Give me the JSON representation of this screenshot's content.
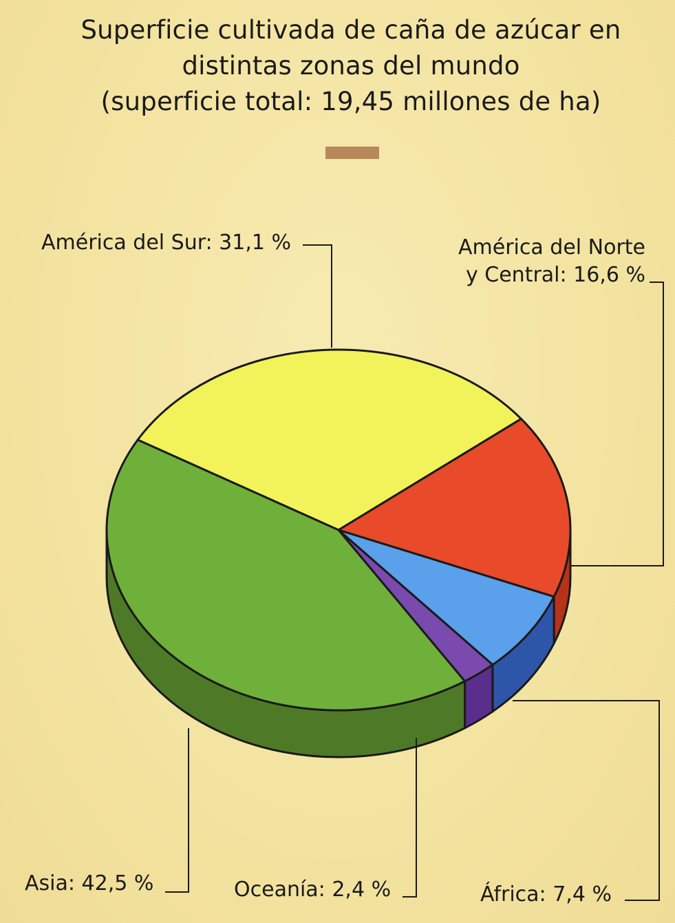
{
  "title_lines": [
    "Superficie cultivada de caña de azúcar en",
    "distintas zonas del mundo",
    "(superficie total: 19,45 millones de ha)"
  ],
  "colors": {
    "background": "#f4e6a4",
    "title_bar": "#b7895a",
    "outline": "#1a1a1a"
  },
  "chart_data": {
    "type": "pie",
    "title": "Superficie cultivada de caña de azúcar en distintas zonas del mundo (superficie total: 19,45 millones de ha)",
    "total": "19,45 millones de ha",
    "slices": [
      {
        "name": "América del Sur",
        "value": 31.1,
        "label": "América del Sur: 31,1 %",
        "color": "#f2f25a",
        "side": "#c8c83a"
      },
      {
        "name": "América del Norte y Central",
        "value": 16.6,
        "label_lines": [
          "América del Norte",
          "y Central: 16,6 %"
        ],
        "color": "#e84a2a",
        "side": "#b5331a"
      },
      {
        "name": "África",
        "value": 7.4,
        "label": "África: 7,4 %",
        "color": "#5aa0ea",
        "side": "#2e56a8"
      },
      {
        "name": "Oceanía",
        "value": 2.4,
        "label": "Oceanía: 2,4 %",
        "color": "#7a4aae",
        "side": "#5a2e8c"
      },
      {
        "name": "Asia",
        "value": 42.5,
        "label": "Asia: 42,5 %",
        "color": "#6fb03a",
        "side": "#4e7a28"
      }
    ]
  }
}
